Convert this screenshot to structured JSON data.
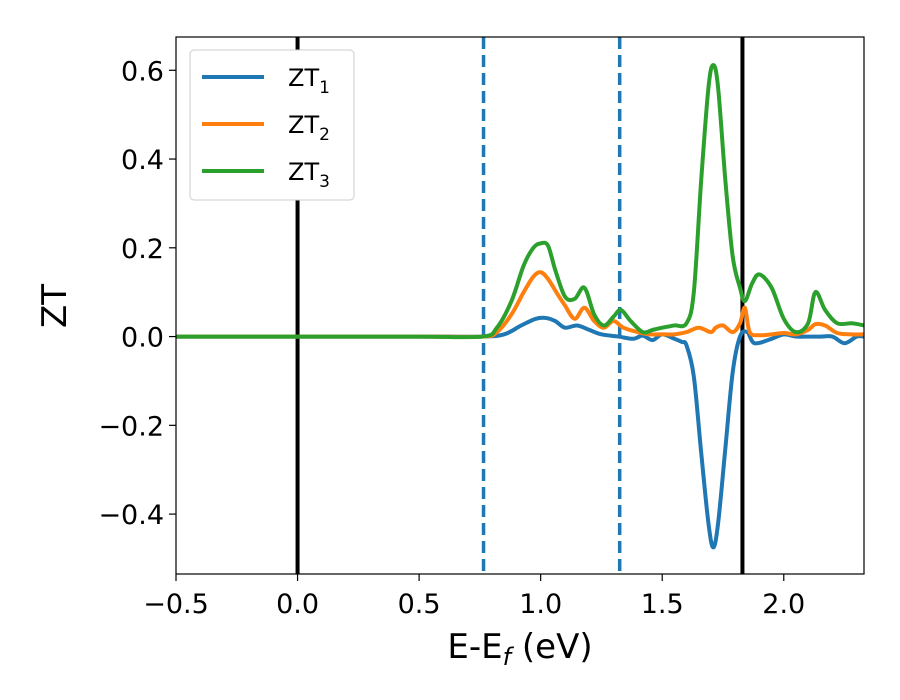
{
  "chart_data": {
    "type": "line",
    "xlabel": {
      "main": "E-E",
      "sub": "f",
      "unit": " (eV)"
    },
    "ylabel": "ZT",
    "xlim": [
      -0.5,
      2.33
    ],
    "ylim": [
      -0.535,
      0.675
    ],
    "xticks": [
      {
        "value": -0.5,
        "label": "−0.5"
      },
      {
        "value": 0.0,
        "label": "0.0"
      },
      {
        "value": 0.5,
        "label": "0.5"
      },
      {
        "value": 1.0,
        "label": "1.0"
      },
      {
        "value": 1.5,
        "label": "1.5"
      },
      {
        "value": 2.0,
        "label": "2.0"
      }
    ],
    "yticks": [
      {
        "value": -0.4,
        "label": "−0.4"
      },
      {
        "value": -0.2,
        "label": "−0.2"
      },
      {
        "value": 0.0,
        "label": "0.0"
      },
      {
        "value": 0.2,
        "label": "0.2"
      },
      {
        "value": 0.4,
        "label": "0.4"
      },
      {
        "value": 0.6,
        "label": "0.6"
      }
    ],
    "grid": false,
    "legend_position": "top-left",
    "vlines": [
      {
        "x": 0.0,
        "color": "#000000",
        "style": "solid"
      },
      {
        "x": 0.765,
        "color": "#1f77b4",
        "style": "dashed"
      },
      {
        "x": 1.325,
        "color": "#1f77b4",
        "style": "dashed"
      },
      {
        "x": 1.83,
        "color": "#000000",
        "style": "solid"
      }
    ],
    "series": [
      {
        "name": "ZT",
        "sub": "1",
        "color": "#1f77b4",
        "x": [
          -0.5,
          0.0,
          0.5,
          0.76,
          0.85,
          0.92,
          0.98,
          1.02,
          1.06,
          1.1,
          1.15,
          1.2,
          1.25,
          1.32,
          1.38,
          1.42,
          1.46,
          1.5,
          1.55,
          1.58,
          1.6,
          1.63,
          1.66,
          1.69,
          1.71,
          1.73,
          1.76,
          1.79,
          1.82,
          1.85,
          1.88,
          1.95,
          2.0,
          2.05,
          2.1,
          2.15,
          2.2,
          2.25,
          2.3,
          2.33
        ],
        "y": [
          0,
          0,
          0,
          0,
          0.005,
          0.025,
          0.04,
          0.042,
          0.035,
          0.02,
          0.025,
          0.015,
          0.005,
          0.0,
          -0.005,
          0.002,
          -0.008,
          0.005,
          -0.005,
          -0.012,
          -0.02,
          -0.09,
          -0.26,
          -0.42,
          -0.475,
          -0.42,
          -0.25,
          -0.08,
          0.0,
          0.01,
          -0.015,
          -0.005,
          0.005,
          0.0,
          0.0,
          0.0,
          0.0,
          -0.015,
          0.0,
          0.0
        ]
      },
      {
        "name": "ZT",
        "sub": "2",
        "color": "#ff7f0e",
        "x": [
          -0.5,
          0.0,
          0.5,
          0.76,
          0.82,
          0.88,
          0.93,
          0.97,
          1.0,
          1.03,
          1.07,
          1.1,
          1.14,
          1.18,
          1.22,
          1.26,
          1.3,
          1.34,
          1.4,
          1.45,
          1.5,
          1.55,
          1.6,
          1.65,
          1.7,
          1.72,
          1.75,
          1.79,
          1.82,
          1.84,
          1.86,
          1.9,
          1.95,
          2.0,
          2.05,
          2.1,
          2.13,
          2.17,
          2.22,
          2.28,
          2.33
        ],
        "y": [
          0,
          0,
          0,
          0,
          0.01,
          0.05,
          0.1,
          0.135,
          0.145,
          0.13,
          0.095,
          0.07,
          0.04,
          0.065,
          0.035,
          0.02,
          0.035,
          0.02,
          0.01,
          0.005,
          0.005,
          0.005,
          0.01,
          0.02,
          0.01,
          0.02,
          0.025,
          0.01,
          0.03,
          0.065,
          0.01,
          0.003,
          0.005,
          0.008,
          0.005,
          0.015,
          0.028,
          0.025,
          0.008,
          0.005,
          0.005
        ]
      },
      {
        "name": "ZT",
        "sub": "3",
        "color": "#2ca02c",
        "x": [
          -0.5,
          0.0,
          0.5,
          0.76,
          0.82,
          0.88,
          0.93,
          0.97,
          1.0,
          1.03,
          1.06,
          1.1,
          1.14,
          1.18,
          1.22,
          1.26,
          1.3,
          1.33,
          1.37,
          1.42,
          1.46,
          1.5,
          1.55,
          1.6,
          1.63,
          1.66,
          1.69,
          1.71,
          1.73,
          1.76,
          1.79,
          1.82,
          1.84,
          1.87,
          1.9,
          1.95,
          2.0,
          2.05,
          2.1,
          2.13,
          2.17,
          2.22,
          2.28,
          2.33
        ],
        "y": [
          0,
          0,
          0,
          0,
          0.02,
          0.08,
          0.16,
          0.2,
          0.21,
          0.205,
          0.15,
          0.09,
          0.085,
          0.11,
          0.05,
          0.025,
          0.045,
          0.06,
          0.035,
          0.01,
          0.015,
          0.02,
          0.025,
          0.03,
          0.1,
          0.35,
          0.56,
          0.612,
          0.56,
          0.35,
          0.18,
          0.11,
          0.08,
          0.12,
          0.14,
          0.11,
          0.04,
          0.01,
          0.03,
          0.1,
          0.06,
          0.03,
          0.03,
          0.025
        ]
      }
    ]
  }
}
